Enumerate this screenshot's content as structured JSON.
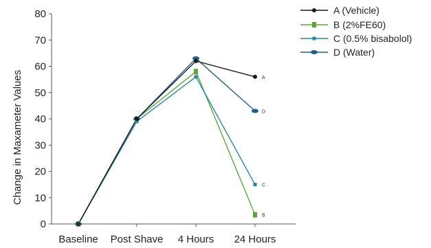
{
  "chart_data": {
    "type": "line",
    "ylabel": "Change in Maxameter Values",
    "xlabel": "",
    "categories": [
      "Baseline",
      "Post Shave",
      "4 Hours",
      "24 Hours"
    ],
    "ylim": [
      0,
      80
    ],
    "yticks": [
      0,
      10,
      20,
      30,
      40,
      50,
      60,
      70,
      80
    ],
    "grid": false,
    "legend_position": "top-right",
    "series": [
      {
        "name": "A (Vehicle)",
        "color": "#1a1a1a",
        "marker": "circle",
        "end_label": "A",
        "values": [
          0,
          40,
          62,
          56
        ]
      },
      {
        "name": "B (2%FE60)",
        "color": "#5aa63c",
        "marker": "square",
        "end_label": "B",
        "values": [
          0,
          40,
          58,
          3.5
        ]
      },
      {
        "name": "C (0.5% bisabolol)",
        "color": "#2a86a0",
        "marker": "square-small",
        "end_label": "C",
        "values": [
          0,
          39,
          56,
          15
        ]
      },
      {
        "name": "D (Water)",
        "color": "#1f5f8a",
        "marker": "ellipse",
        "end_label": "D",
        "values": [
          0,
          40,
          63,
          43
        ]
      }
    ]
  }
}
